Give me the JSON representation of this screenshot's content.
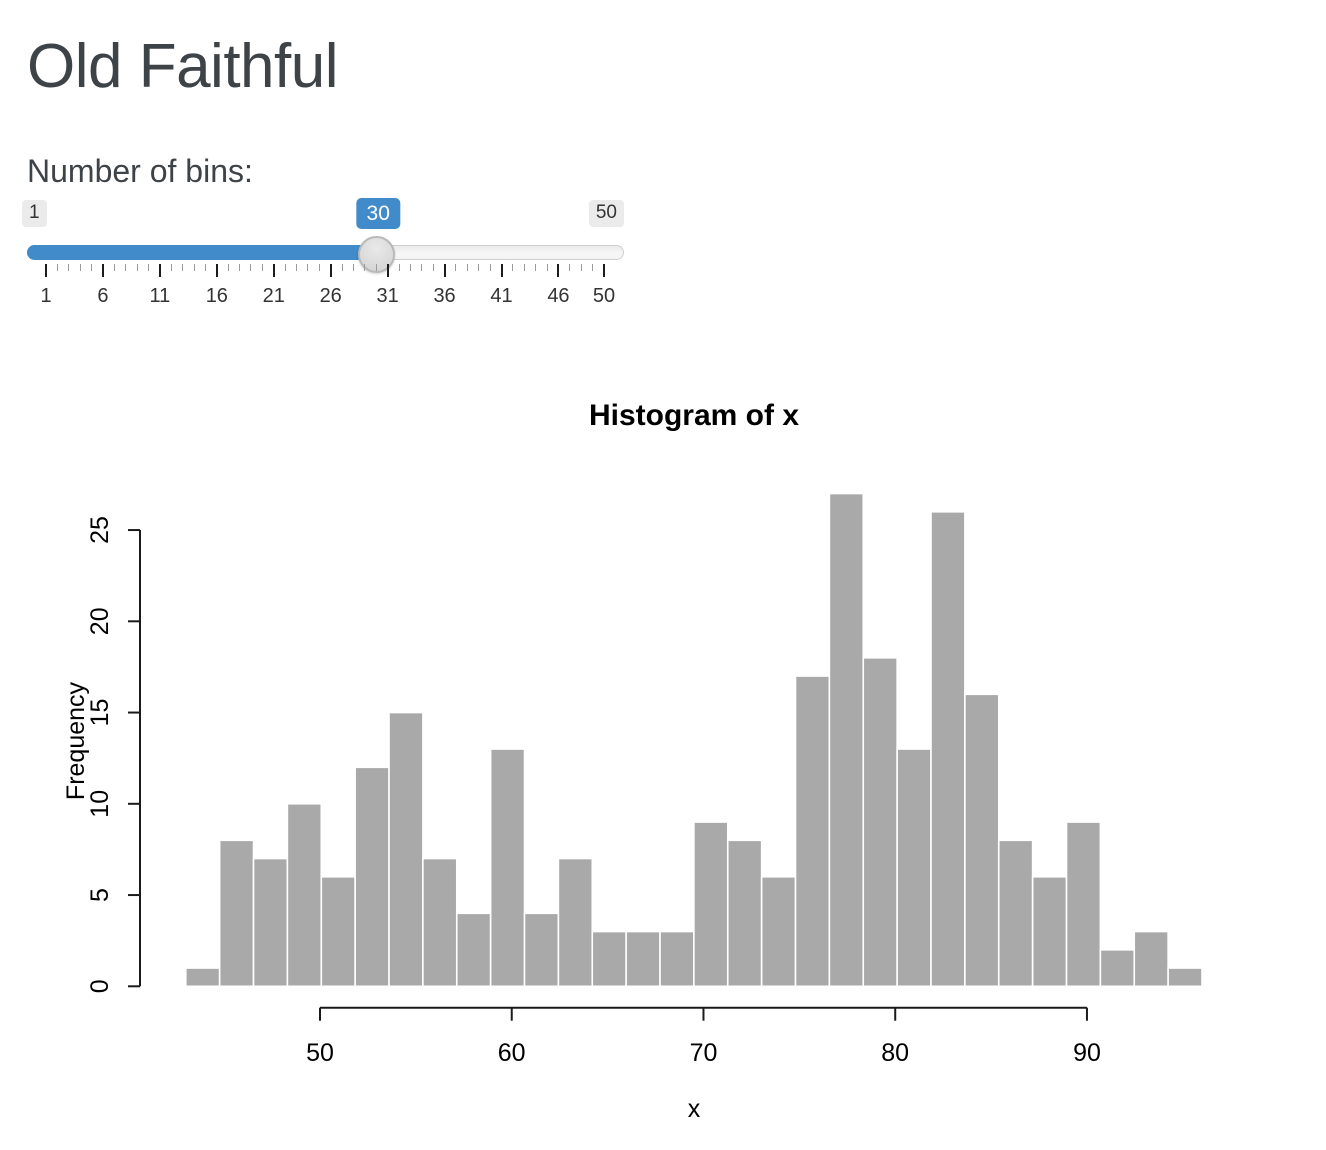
{
  "page": {
    "title": "Old Faithful"
  },
  "slider": {
    "label": "Number of bins:",
    "min": 1,
    "max": 50,
    "value": 30,
    "min_label": "1",
    "max_label": "50",
    "value_label": "30",
    "major_ticks": [
      1,
      6,
      11,
      16,
      21,
      26,
      31,
      36,
      41,
      46,
      50
    ],
    "accent_color": "#428bca"
  },
  "chart_data": {
    "type": "bar",
    "title": "Histogram of x",
    "xlabel": "x",
    "ylabel": "Frequency",
    "bin_start": 43,
    "bin_end": 96,
    "bin_width": 1.7666667,
    "counts": [
      1,
      8,
      7,
      10,
      6,
      12,
      15,
      7,
      4,
      13,
      4,
      7,
      3,
      3,
      3,
      9,
      8,
      6,
      17,
      27,
      18,
      13,
      26,
      16,
      8,
      6,
      9,
      2,
      3,
      1
    ],
    "x_ticks": [
      50,
      60,
      70,
      80,
      90
    ],
    "y_ticks": [
      0,
      5,
      10,
      15,
      20,
      25
    ],
    "xlim": [
      43,
      96
    ],
    "ylim": [
      0,
      27
    ],
    "grid": false,
    "legend": false,
    "bar_fill": "#A9A9A9",
    "bar_border": "#FFFFFF",
    "axis_color": "#1a1a1a"
  }
}
